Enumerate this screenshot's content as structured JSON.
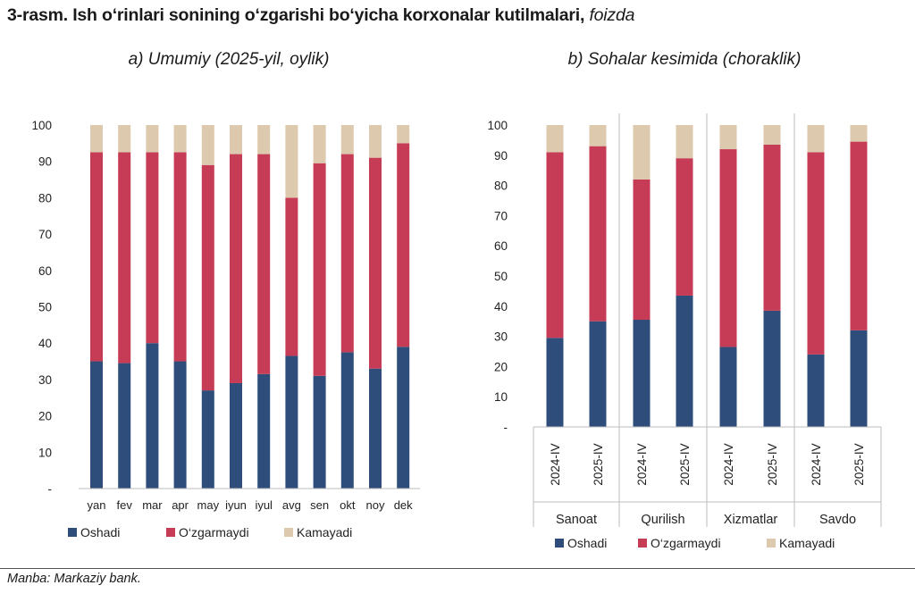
{
  "figure": {
    "title_main": "3-rasm. Ish o‘rinlari sonining o‘zgarishi bo‘yicha korxonalar kutilmalari,",
    "title_unit": "foizda",
    "source": "Manba: Markaziy bank."
  },
  "colors": {
    "Oshadi": "#2e4d7b",
    "O‘zgarmaydi": "#c63b55",
    "Kamayadi": "#ddc9ad"
  },
  "chart_data": [
    {
      "type": "bar",
      "stacked": true,
      "title": "a) Umumiy (2025-yil, oylik)",
      "categories": [
        "yan",
        "fev",
        "mar",
        "apr",
        "may",
        "iyun",
        "iyul",
        "avg",
        "sen",
        "okt",
        "noy",
        "dek"
      ],
      "series": [
        {
          "name": "Oshadi",
          "values": [
            35,
            34.5,
            40,
            35,
            27,
            29,
            31.5,
            36.5,
            31,
            37.5,
            33,
            39
          ]
        },
        {
          "name": "O‘zgarmaydi",
          "values": [
            57.5,
            58,
            52.5,
            57.5,
            62,
            63,
            60.5,
            43.5,
            58.5,
            54.5,
            58,
            56
          ]
        },
        {
          "name": "Kamayadi",
          "values": [
            7.5,
            7.5,
            7.5,
            7.5,
            11,
            8,
            8,
            20,
            10.5,
            8,
            9,
            5
          ]
        }
      ],
      "ylim": [
        0,
        100
      ],
      "yticks": [
        "-",
        "10",
        "20",
        "30",
        "40",
        "50",
        "60",
        "70",
        "80",
        "90",
        "100"
      ],
      "legend": [
        "Oshadi",
        "O‘zgarmaydi",
        "Kamayadi"
      ],
      "legend_position": "bottom",
      "grid": false
    },
    {
      "type": "bar",
      "stacked": true,
      "title": "b) Sohalar kesimida (choraklik)",
      "groups": [
        "Sanoat",
        "Qurilish",
        "Xizmatlar",
        "Savdo"
      ],
      "categories": [
        "2024-IV",
        "2025-IV",
        "2024-IV",
        "2025-IV",
        "2024-IV",
        "2025-IV",
        "2024-IV",
        "2025-IV"
      ],
      "series": [
        {
          "name": "Oshadi",
          "values": [
            29.5,
            35,
            35.5,
            43.5,
            26.5,
            38.5,
            24,
            32
          ]
        },
        {
          "name": "O‘zgarmaydi",
          "values": [
            61.5,
            58,
            46.5,
            45.5,
            65.5,
            55,
            67,
            62.5
          ]
        },
        {
          "name": "Kamayadi",
          "values": [
            9,
            7,
            18,
            11,
            8,
            6.5,
            9,
            5.5
          ]
        }
      ],
      "ylim": [
        0,
        100
      ],
      "yticks": [
        "-",
        "10",
        "20",
        "30",
        "40",
        "50",
        "60",
        "70",
        "80",
        "90",
        "100"
      ],
      "legend": [
        "Oshadi",
        "O‘zgarmaydi",
        "Kamayadi"
      ],
      "legend_position": "bottom",
      "grid": false
    }
  ]
}
